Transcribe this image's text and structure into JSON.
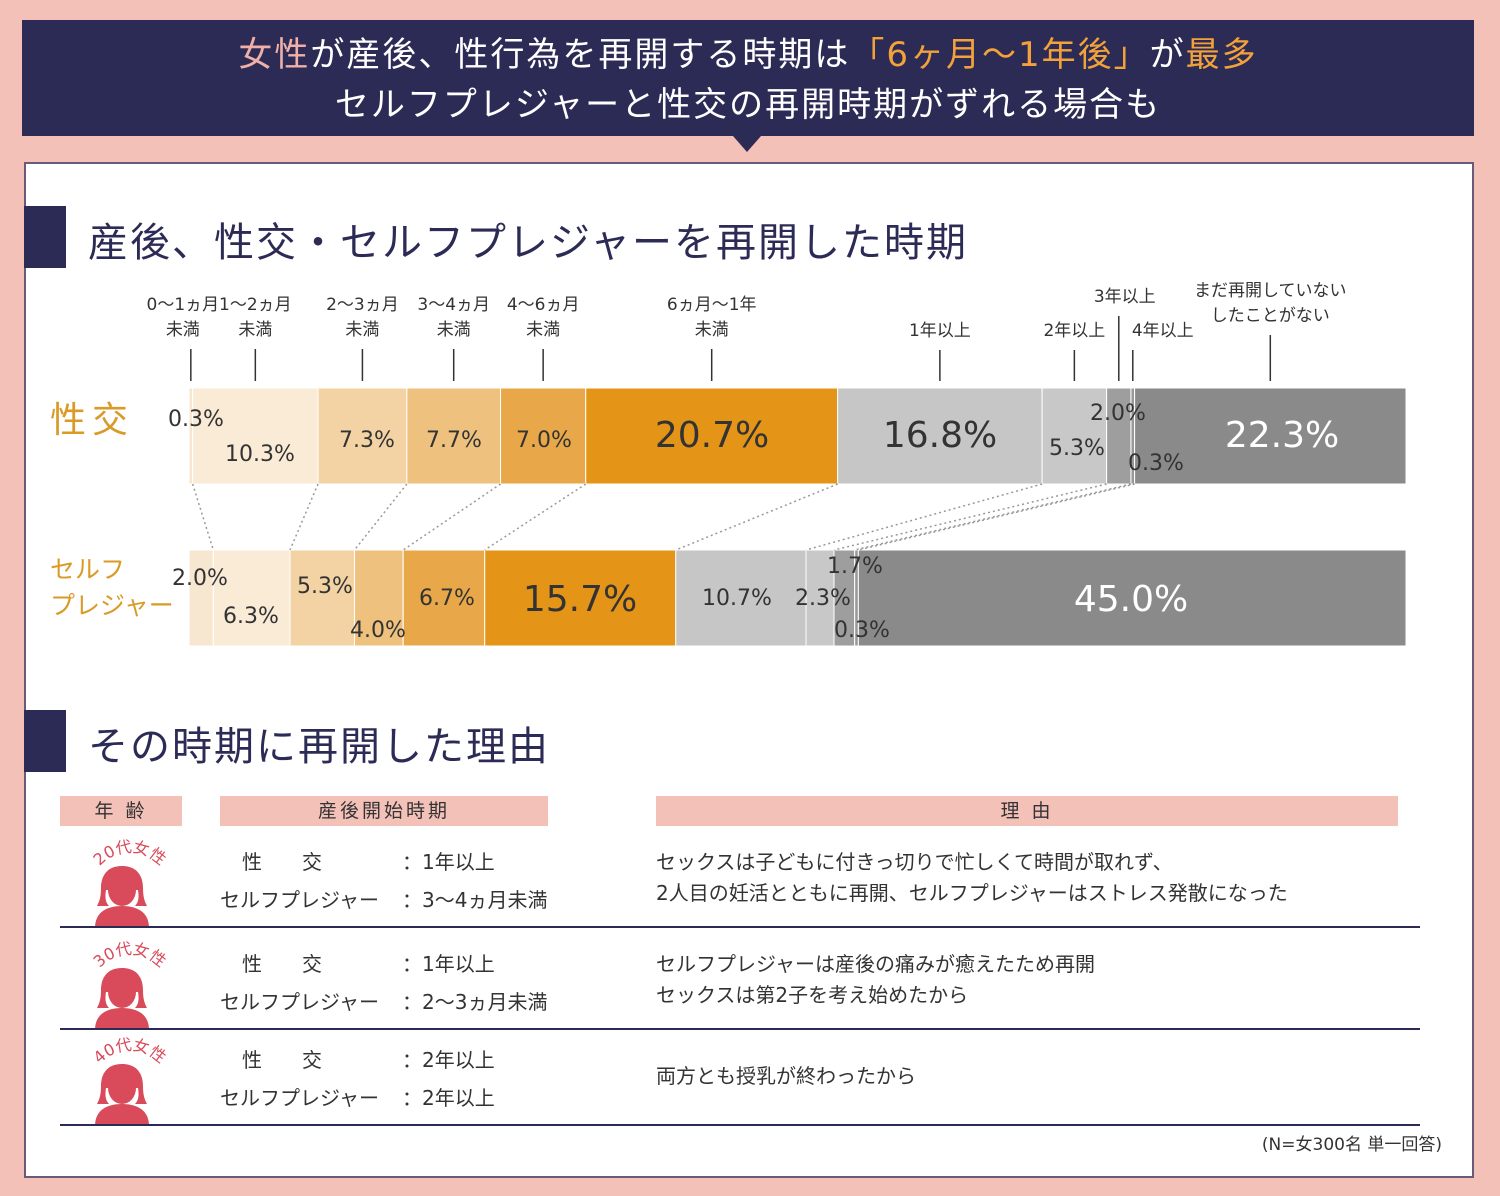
{
  "banner": {
    "line1_parts": [
      {
        "text": "女性",
        "color": "pink"
      },
      {
        "text": "が産後、性行為を再開する時期は",
        "color": "white"
      },
      {
        "text": "「6ヶ月〜1年後」",
        "color": "orange"
      },
      {
        "text": "が",
        "color": "white"
      },
      {
        "text": "最多",
        "color": "orange"
      }
    ],
    "line2": "セルフプレジャーと性交の再開時期がずれる場合も"
  },
  "section1_title": "産後、性交・セルフプレジャーを再開した時期",
  "section2_title": "その時期に再開した理由",
  "chart_data": {
    "type": "bar",
    "orientation": "horizontal-stacked-100",
    "categories": [
      "0〜1ヵ月未満",
      "1〜2ヵ月未満",
      "2〜3ヵ月未満",
      "3〜4ヵ月未満",
      "4〜6ヵ月未満",
      "6ヵ月〜1年未満",
      "1年以上",
      "2年以上",
      "3年以上",
      "4年以上",
      "まだ再開していない／したことがない"
    ],
    "category_header_lines": [
      [
        "0〜1ヵ月",
        "未満"
      ],
      [
        "1〜2ヵ月",
        "未満"
      ],
      [
        "2〜3ヵ月",
        "未満"
      ],
      [
        "3〜4ヵ月",
        "未満"
      ],
      [
        "4〜6ヵ月",
        "未満"
      ],
      [
        "6ヵ月〜1年",
        "未満"
      ],
      [
        "1年以上"
      ],
      [
        "2年以上"
      ],
      [
        "3年以上"
      ],
      [
        "4年以上"
      ],
      [
        "まだ再開していない",
        "したことがない"
      ]
    ],
    "colors": [
      "#f8e7d0",
      "#faebd6",
      "#f3d3a4",
      "#eec27e",
      "#e8a84a",
      "#e49518",
      "#c6c6c6",
      "#c8c8c8",
      "#9e9e9e",
      "#989898",
      "#8a8a8a"
    ],
    "series": [
      {
        "name": "性交",
        "values": [
          0.3,
          10.3,
          7.3,
          7.7,
          7.0,
          20.7,
          16.8,
          5.3,
          2.0,
          0.3,
          22.3
        ],
        "labels": [
          "0.3%",
          "10.3%",
          "7.3%",
          "7.7%",
          "7.0%",
          "20.7%",
          "16.8%",
          "5.3%",
          "2.0%",
          "0.3%",
          "22.3%"
        ]
      },
      {
        "name": "セルフプレジャー",
        "name_lines": [
          "セルフ",
          "プレジャー"
        ],
        "values": [
          2.0,
          6.3,
          5.3,
          4.0,
          6.7,
          15.7,
          10.7,
          2.3,
          1.7,
          0.3,
          45.0
        ],
        "labels": [
          "2.0%",
          "6.3%",
          "5.3%",
          "4.0%",
          "6.7%",
          "15.7%",
          "10.7%",
          "2.3%",
          "1.7%",
          "0.3%",
          "45.0%"
        ]
      }
    ]
  },
  "table": {
    "headers": {
      "age": "年 齢",
      "timing": "産後開始時期",
      "reason": "理 由"
    },
    "row_label_sex": "性　　交",
    "row_label_self": "セルフプレジャー",
    "rows": [
      {
        "age": "20代女性",
        "sex": "：1年以上",
        "self": "：3〜4ヵ月未満",
        "reason1": "セックスは子どもに付きっ切りで忙しくて時間が取れず、",
        "reason2": "2人目の妊活とともに再開、セルフプレジャーはストレス発散になった"
      },
      {
        "age": "30代女性",
        "sex": "：1年以上",
        "self": "：2〜3ヵ月未満",
        "reason1": "セルフプレジャーは産後の痛みが癒えたため再開",
        "reason2": "セックスは第2子を考え始めたから"
      },
      {
        "age": "40代女性",
        "sex": "：2年以上",
        "self": "：2年以上",
        "reason1": "両方とも授乳が終わったから",
        "reason2": ""
      }
    ]
  },
  "footnote": "(N=女300名 単一回答)"
}
